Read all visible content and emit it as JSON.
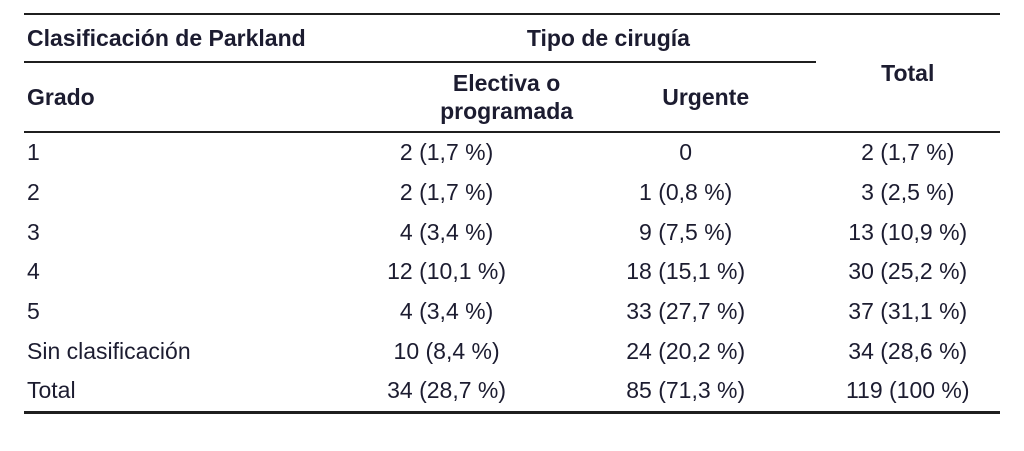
{
  "page": {
    "background": "#ffffff"
  },
  "table": {
    "semantic": "Parkland classification cross-tabulated by surgery type",
    "colors": {
      "text": "#1c1c30",
      "rule": "#1f1f1f",
      "background": "#ffffff"
    },
    "header": {
      "group_left": "Clasificación de Parkland",
      "group_surgery": "Tipo de cirugía",
      "total": "Total",
      "sub_grade": "Grado",
      "sub_elective": "Electiva o programada",
      "sub_urgent": "Urgente"
    },
    "rows": [
      {
        "grade": "1",
        "elective": "2 (1,7 %)",
        "urgent": "0",
        "total": "2 (1,7 %)"
      },
      {
        "grade": "2",
        "elective": "2 (1,7 %)",
        "urgent": "1 (0,8 %)",
        "total": "3 (2,5 %)"
      },
      {
        "grade": "3",
        "elective": "4 (3,4 %)",
        "urgent": "9 (7,5 %)",
        "total": "13 (10,9 %)"
      },
      {
        "grade": "4",
        "elective": "12 (10,1 %)",
        "urgent": "18 (15,1 %)",
        "total": "30 (25,2 %)"
      },
      {
        "grade": "5",
        "elective": "4 (3,4 %)",
        "urgent": "33 (27,7 %)",
        "total": "37 (31,1 %)"
      },
      {
        "grade": "Sin clasificación",
        "elective": "10 (8,4 %)",
        "urgent": "24 (20,2 %)",
        "total": "34 (28,6 %)"
      },
      {
        "grade": "Total",
        "elective": "34 (28,7 %)",
        "urgent": "85 (71,3 %)",
        "total": "119 (100 %)"
      }
    ]
  }
}
